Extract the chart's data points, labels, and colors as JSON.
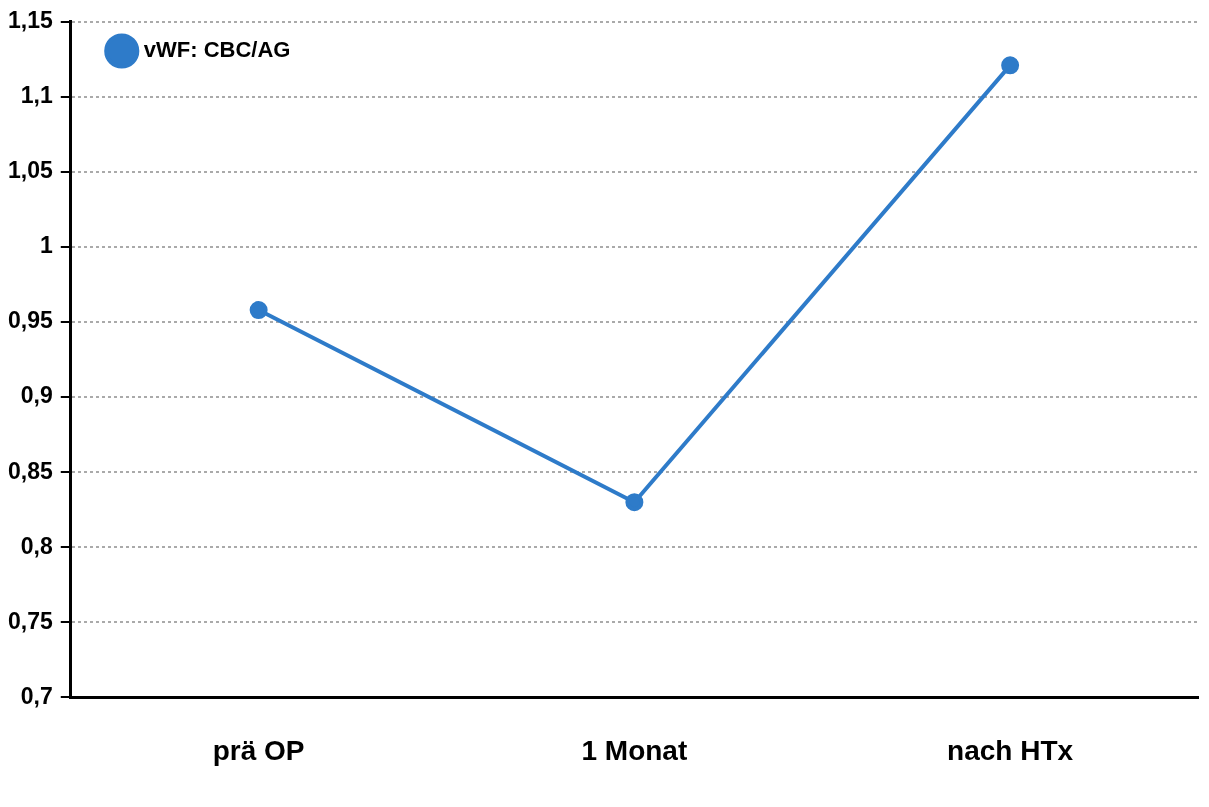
{
  "chart_data": {
    "type": "line",
    "categories": [
      "prä OP",
      "1 Monat",
      "nach HTx"
    ],
    "series": [
      {
        "name": "vWF: CBC/AG",
        "color": "#2e7bc9",
        "values": [
          0.958,
          0.83,
          1.121
        ]
      }
    ],
    "ylim": [
      0.7,
      1.15
    ],
    "yticks": [
      {
        "value": 0.7,
        "label": "0,7"
      },
      {
        "value": 0.75,
        "label": "0,75"
      },
      {
        "value": 0.8,
        "label": "0,8"
      },
      {
        "value": 0.85,
        "label": "0,85"
      },
      {
        "value": 0.9,
        "label": "0,9"
      },
      {
        "value": 0.95,
        "label": "0,95"
      },
      {
        "value": 1,
        "label": "1"
      },
      {
        "value": 1.05,
        "label": "1,05"
      },
      {
        "value": 1.1,
        "label": "1,1"
      },
      {
        "value": 1.15,
        "label": "1,15"
      }
    ],
    "grid": "y",
    "legend": "top left",
    "marker": "circle",
    "line_style": "solid"
  }
}
